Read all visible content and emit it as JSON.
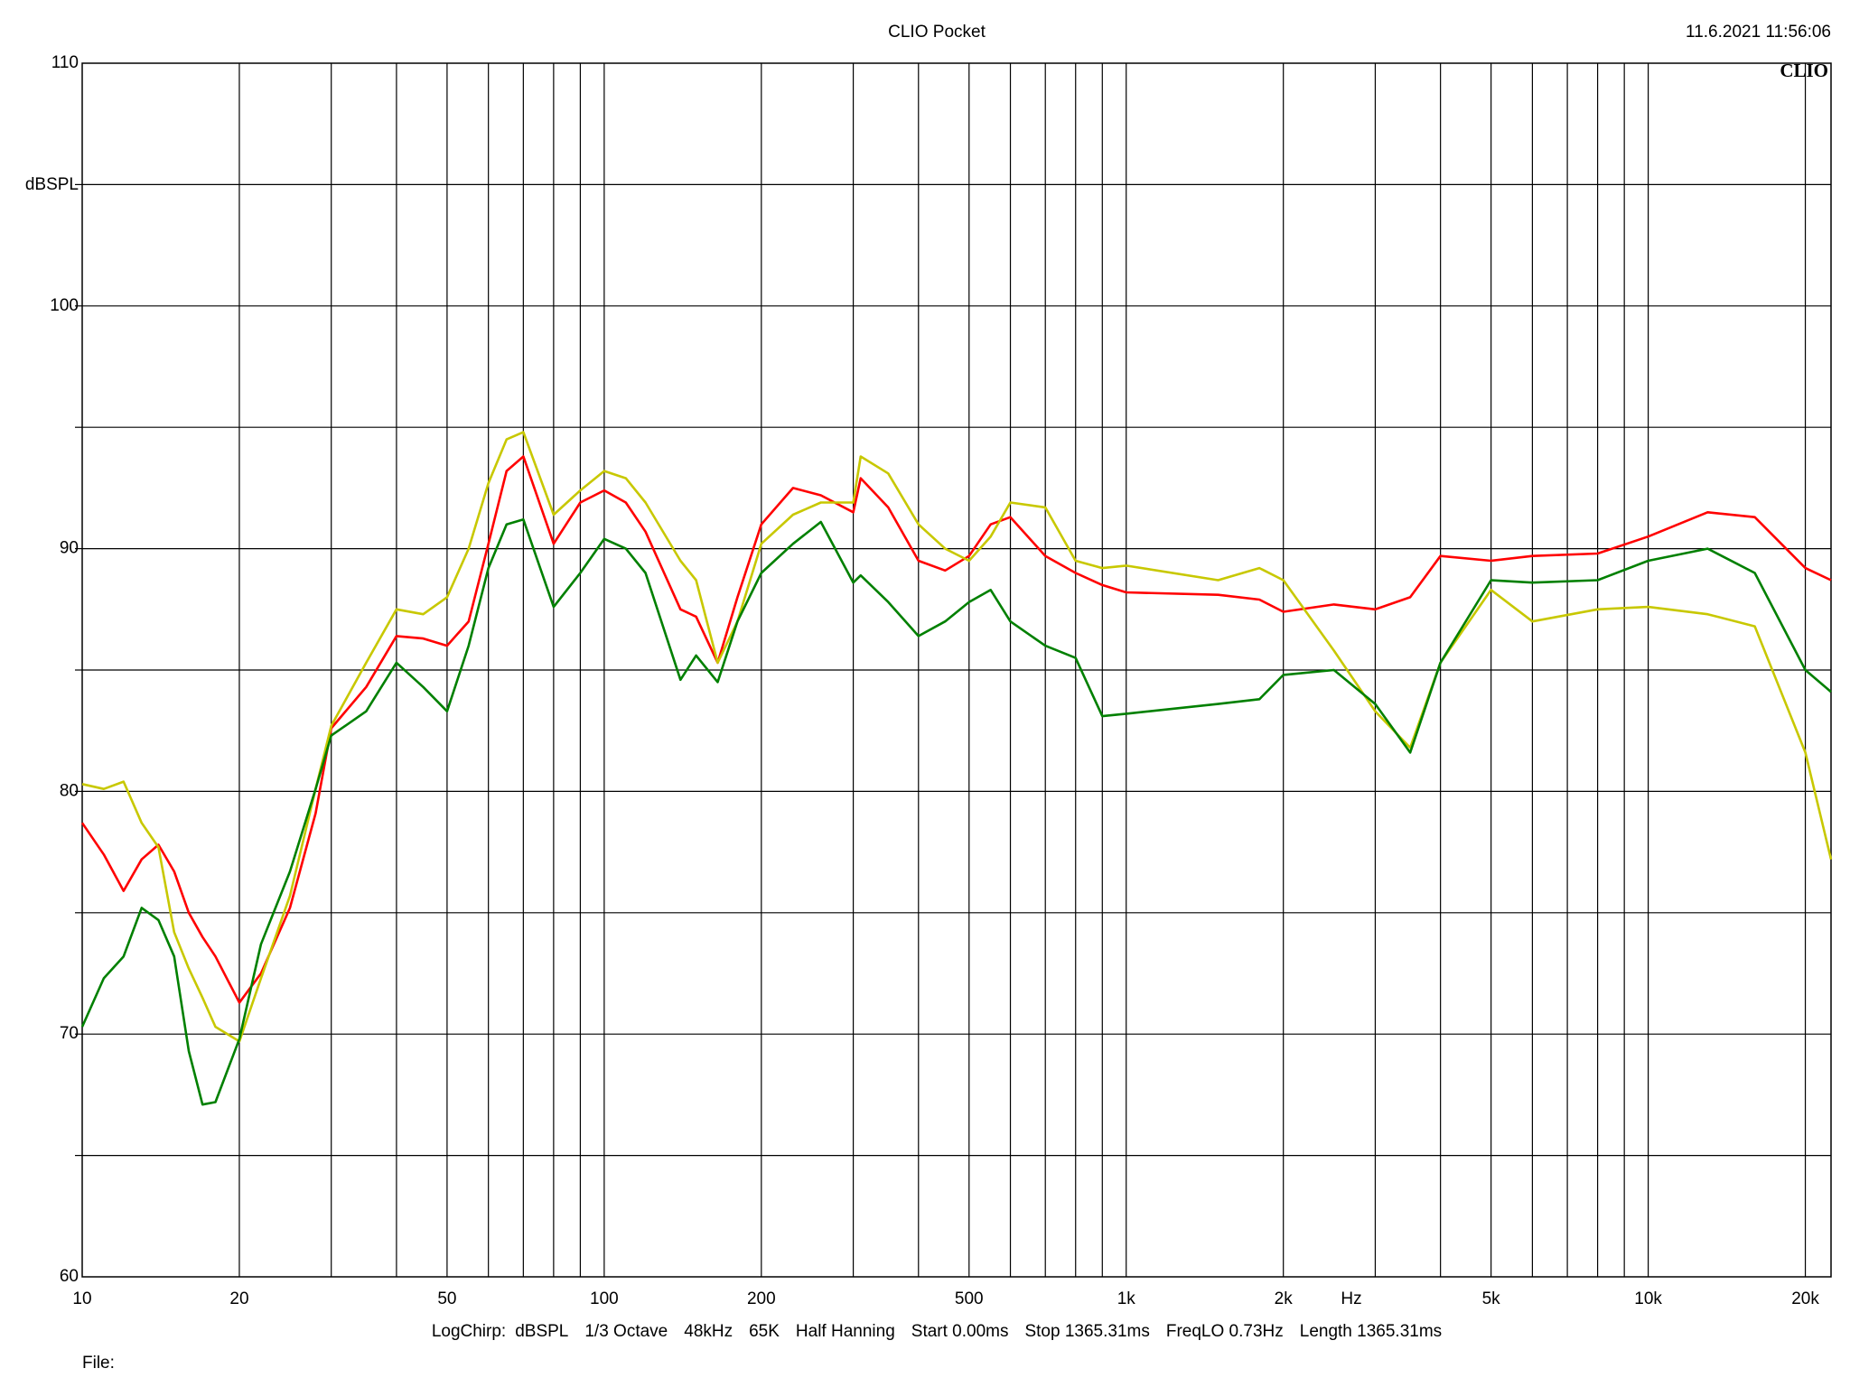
{
  "chart_data": {
    "type": "line",
    "title": "CLIO Pocket",
    "timestamp": "11.6.2021 11:56:06",
    "logo": "CLIO",
    "ylabel": "dBSPL",
    "xlabel": "Hz",
    "footer": [
      "LogChirp:",
      "dBSPL",
      "1/3 Octave",
      "48kHz",
      "65K",
      "Half Hanning",
      "Start 0.00ms",
      "Stop 1365.31ms",
      "FreqLO 0.73Hz",
      "Length 1365.31ms"
    ],
    "file_label": "File:",
    "xscale": "log",
    "grid": true,
    "xlim": [
      10,
      22400
    ],
    "ylim": [
      60,
      110
    ],
    "xticks": [
      10,
      20,
      50,
      100,
      200,
      500,
      {
        "value": 1000,
        "label": "1k"
      },
      {
        "value": 2000,
        "label": "2k"
      },
      {
        "value": 5000,
        "label": "5k"
      },
      {
        "value": 10000,
        "label": "10k"
      },
      {
        "value": 20000,
        "label": "20k"
      }
    ],
    "yticks": [
      60,
      70,
      80,
      90,
      100,
      110
    ],
    "xgrid": [
      20,
      30,
      40,
      50,
      60,
      70,
      80,
      90,
      100,
      200,
      300,
      400,
      500,
      600,
      700,
      800,
      900,
      1000,
      2000,
      3000,
      4000,
      5000,
      6000,
      7000,
      8000,
      9000,
      10000,
      20000
    ],
    "ygrid": [
      65,
      70,
      75,
      80,
      85,
      90,
      95,
      100,
      105
    ],
    "x": [
      10,
      11,
      12,
      13,
      14,
      15,
      16,
      17,
      18,
      20,
      22,
      25,
      28,
      30,
      35,
      40,
      45,
      50,
      55,
      60,
      65,
      70,
      80,
      90,
      100,
      110,
      120,
      140,
      150,
      165,
      180,
      200,
      230,
      260,
      300,
      310,
      350,
      400,
      450,
      500,
      550,
      600,
      700,
      800,
      900,
      1000,
      1500,
      1800,
      2000,
      2500,
      3000,
      3500,
      4000,
      5000,
      6000,
      8000,
      10000,
      13000,
      16000,
      20000,
      22400
    ],
    "series": [
      {
        "name": "Red",
        "color": "#ff0000",
        "values": [
          78.7,
          77.4,
          75.9,
          77.2,
          77.8,
          76.7,
          75.0,
          74.0,
          73.2,
          71.3,
          72.5,
          75.2,
          79.1,
          82.6,
          84.3,
          86.4,
          86.3,
          86.0,
          87.0,
          90.2,
          93.2,
          93.8,
          90.2,
          91.9,
          92.4,
          91.9,
          90.7,
          87.5,
          87.2,
          85.3,
          88.0,
          91.0,
          92.5,
          92.2,
          91.5,
          92.9,
          91.7,
          89.5,
          89.1,
          89.7,
          91.0,
          91.3,
          89.7,
          89.0,
          88.5,
          88.2,
          88.1,
          87.9,
          87.4,
          87.7,
          87.5,
          88.0,
          89.7,
          89.5,
          89.7,
          89.8,
          90.5,
          91.5,
          91.3,
          89.2,
          88.7
        ]
      },
      {
        "name": "Yellow",
        "color": "#c8c800",
        "values": [
          80.3,
          80.1,
          80.4,
          78.7,
          77.7,
          74.2,
          72.7,
          71.5,
          70.3,
          69.7,
          72.3,
          75.7,
          80.1,
          82.7,
          85.3,
          87.5,
          87.3,
          88.0,
          90.0,
          92.7,
          94.5,
          94.8,
          91.4,
          92.4,
          93.2,
          92.9,
          91.9,
          89.5,
          88.7,
          85.3,
          87.0,
          90.2,
          91.4,
          91.9,
          91.9,
          93.8,
          93.1,
          91.0,
          90.0,
          89.5,
          90.5,
          91.9,
          91.7,
          89.5,
          89.2,
          89.3,
          88.7,
          89.2,
          88.7,
          85.8,
          83.3,
          81.8,
          85.3,
          88.3,
          87.0,
          87.5,
          87.6,
          87.3,
          86.8,
          81.6,
          77.2
        ]
      },
      {
        "name": "Green",
        "color": "#008000",
        "values": [
          70.3,
          72.3,
          73.2,
          75.2,
          74.7,
          73.2,
          69.3,
          67.1,
          67.2,
          69.8,
          73.7,
          76.7,
          80.1,
          82.3,
          83.3,
          85.3,
          84.3,
          83.3,
          86.0,
          89.2,
          91.0,
          91.2,
          87.6,
          89.0,
          90.4,
          90.0,
          89.0,
          84.6,
          85.6,
          84.5,
          87.0,
          89.0,
          90.2,
          91.1,
          88.6,
          88.9,
          87.8,
          86.4,
          87.0,
          87.8,
          88.3,
          87.0,
          86.0,
          85.5,
          83.1,
          83.2,
          83.6,
          83.8,
          84.8,
          85.0,
          83.6,
          81.6,
          85.3,
          88.7,
          88.6,
          88.7,
          89.5,
          90.0,
          89.0,
          85.0,
          84.1
        ]
      }
    ]
  }
}
